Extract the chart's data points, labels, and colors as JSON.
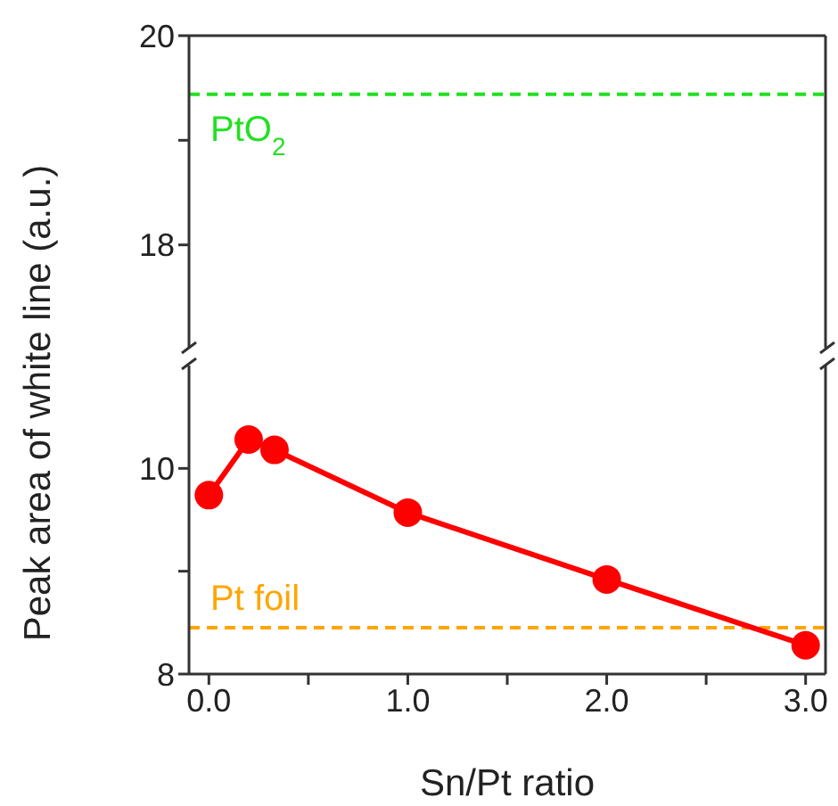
{
  "chart_data": [
    {
      "type": "line",
      "xlim": [
        -0.1,
        3.1
      ],
      "ylim": [
        17,
        20
      ],
      "yticks": [
        18,
        {
          "value": 19,
          "label": null
        },
        20
      ],
      "tick_labels": "y",
      "ref_lines": [
        {
          "axis": "y",
          "value": 19.44,
          "label": "PtO$_{2}$",
          "color": "#22e022",
          "line_style": "dashed"
        }
      ]
    },
    {
      "type": "line",
      "xlabel": "Sn/Pt ratio",
      "ylabel": "Peak area of white line (a.u.)",
      "xlim": [
        -0.1,
        3.1
      ],
      "ylim": [
        8,
        11
      ],
      "xticks": [
        {
          "value": 0,
          "label": "0.0"
        },
        {
          "value": 0.5,
          "label": null
        },
        {
          "value": 1,
          "label": "1.0"
        },
        {
          "value": 1.5,
          "label": null
        },
        {
          "value": 2,
          "label": "2.0"
        },
        {
          "value": 2.5,
          "label": null
        },
        {
          "value": 3,
          "label": "3.0"
        }
      ],
      "yticks": [
        8,
        {
          "value": 9,
          "label": null
        },
        10
      ],
      "marker": "circle",
      "series": [
        {
          "color": "#ff0000",
          "x": [
            0,
            0.2,
            0.33,
            1,
            2,
            3
          ],
          "values": [
            9.74,
            10.28,
            10.18,
            9.57,
            8.92,
            8.28
          ]
        }
      ],
      "ref_lines": [
        {
          "axis": "y",
          "value": 8.45,
          "label": "Pt foil",
          "color": "#ffa500",
          "line_style": "dashed"
        }
      ]
    }
  ]
}
